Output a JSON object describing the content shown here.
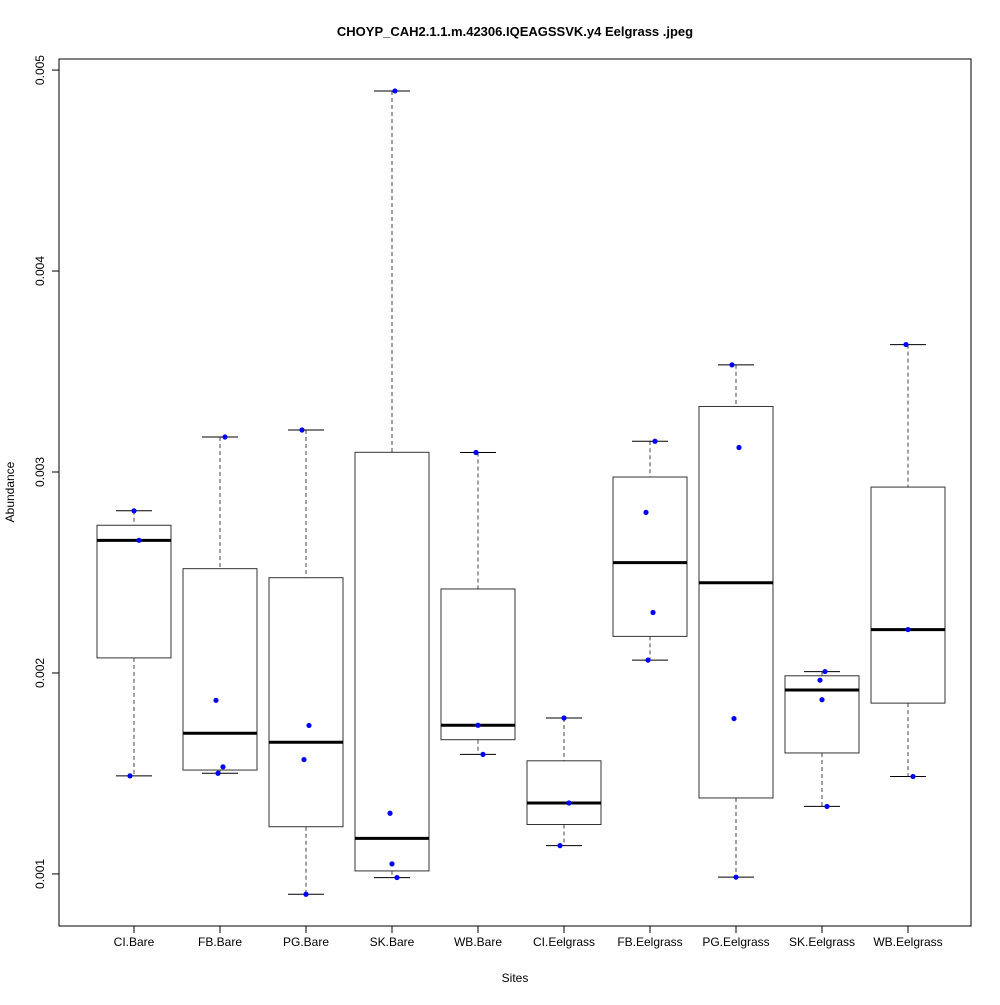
{
  "chart_data": {
    "type": "boxplot",
    "title": "CHOYP_CAH2.1.1.m.42306.IQEAGSSVK.y4 Eelgrass .jpeg",
    "xlabel": "Sites",
    "ylabel": "Abundance",
    "ylim": [
      0.000741,
      0.005055
    ],
    "yticks": [
      0.001,
      0.002,
      0.003,
      0.004,
      0.005
    ],
    "ytick_labels": [
      "0.001",
      "0.002",
      "0.003",
      "0.004",
      "0.005"
    ],
    "grid": false,
    "point_color": "#0000ff",
    "categories": [
      "CI.Bare",
      "FB.Bare",
      "PG.Bare",
      "SK.Bare",
      "WB.Bare",
      "CI.Eelgrass",
      "FB.Eelgrass",
      "PG.Eelgrass",
      "SK.Eelgrass",
      "WB.Eelgrass"
    ],
    "boxes": [
      {
        "whisker_low": 0.001488,
        "q1": 0.002075,
        "median": 0.00266,
        "q3": 0.002735,
        "whisker_high": 0.002807,
        "points": [
          0.002807,
          0.00266,
          0.001488
        ]
      },
      {
        "whisker_low": 0.001501,
        "q1": 0.001517,
        "median": 0.0017,
        "q3": 0.002519,
        "whisker_high": 0.003174,
        "points": [
          0.003174,
          0.001864,
          0.001533,
          0.001501
        ]
      },
      {
        "whisker_low": 0.000899,
        "q1": 0.001235,
        "median": 0.001655,
        "q3": 0.002474,
        "whisker_high": 0.003209,
        "points": [
          0.003209,
          0.001739,
          0.001569,
          0.000899
        ]
      },
      {
        "whisker_low": 0.000982,
        "q1": 0.001015,
        "median": 0.001177,
        "q3": 0.003098,
        "whisker_high": 0.004896,
        "points": [
          0.004896,
          0.001302,
          0.00105,
          0.000982
        ]
      },
      {
        "whisker_low": 0.001595,
        "q1": 0.001668,
        "median": 0.00174,
        "q3": 0.002418,
        "whisker_high": 0.003097,
        "points": [
          0.003097,
          0.00174,
          0.001595
        ]
      },
      {
        "whisker_low": 0.001141,
        "q1": 0.001246,
        "median": 0.001353,
        "q3": 0.001563,
        "whisker_high": 0.001776,
        "points": [
          0.001776,
          0.001353,
          0.001141
        ]
      },
      {
        "whisker_low": 0.002064,
        "q1": 0.002182,
        "median": 0.002549,
        "q3": 0.002975,
        "whisker_high": 0.003153,
        "points": [
          0.003153,
          0.002799,
          0.002301,
          0.002064
        ]
      },
      {
        "whisker_low": 0.000984,
        "q1": 0.001378,
        "median": 0.002449,
        "q3": 0.003326,
        "whisker_high": 0.003533,
        "points": [
          0.003533,
          0.003122,
          0.001773,
          0.000984
        ]
      },
      {
        "whisker_low": 0.001336,
        "q1": 0.001602,
        "median": 0.001915,
        "q3": 0.001986,
        "whisker_high": 0.002007,
        "points": [
          0.002007,
          0.001964,
          0.001867,
          0.001336
        ]
      },
      {
        "whisker_low": 0.001485,
        "q1": 0.00185,
        "median": 0.002216,
        "q3": 0.002925,
        "whisker_high": 0.003634,
        "points": [
          0.003634,
          0.002216,
          0.001485
        ]
      }
    ]
  }
}
